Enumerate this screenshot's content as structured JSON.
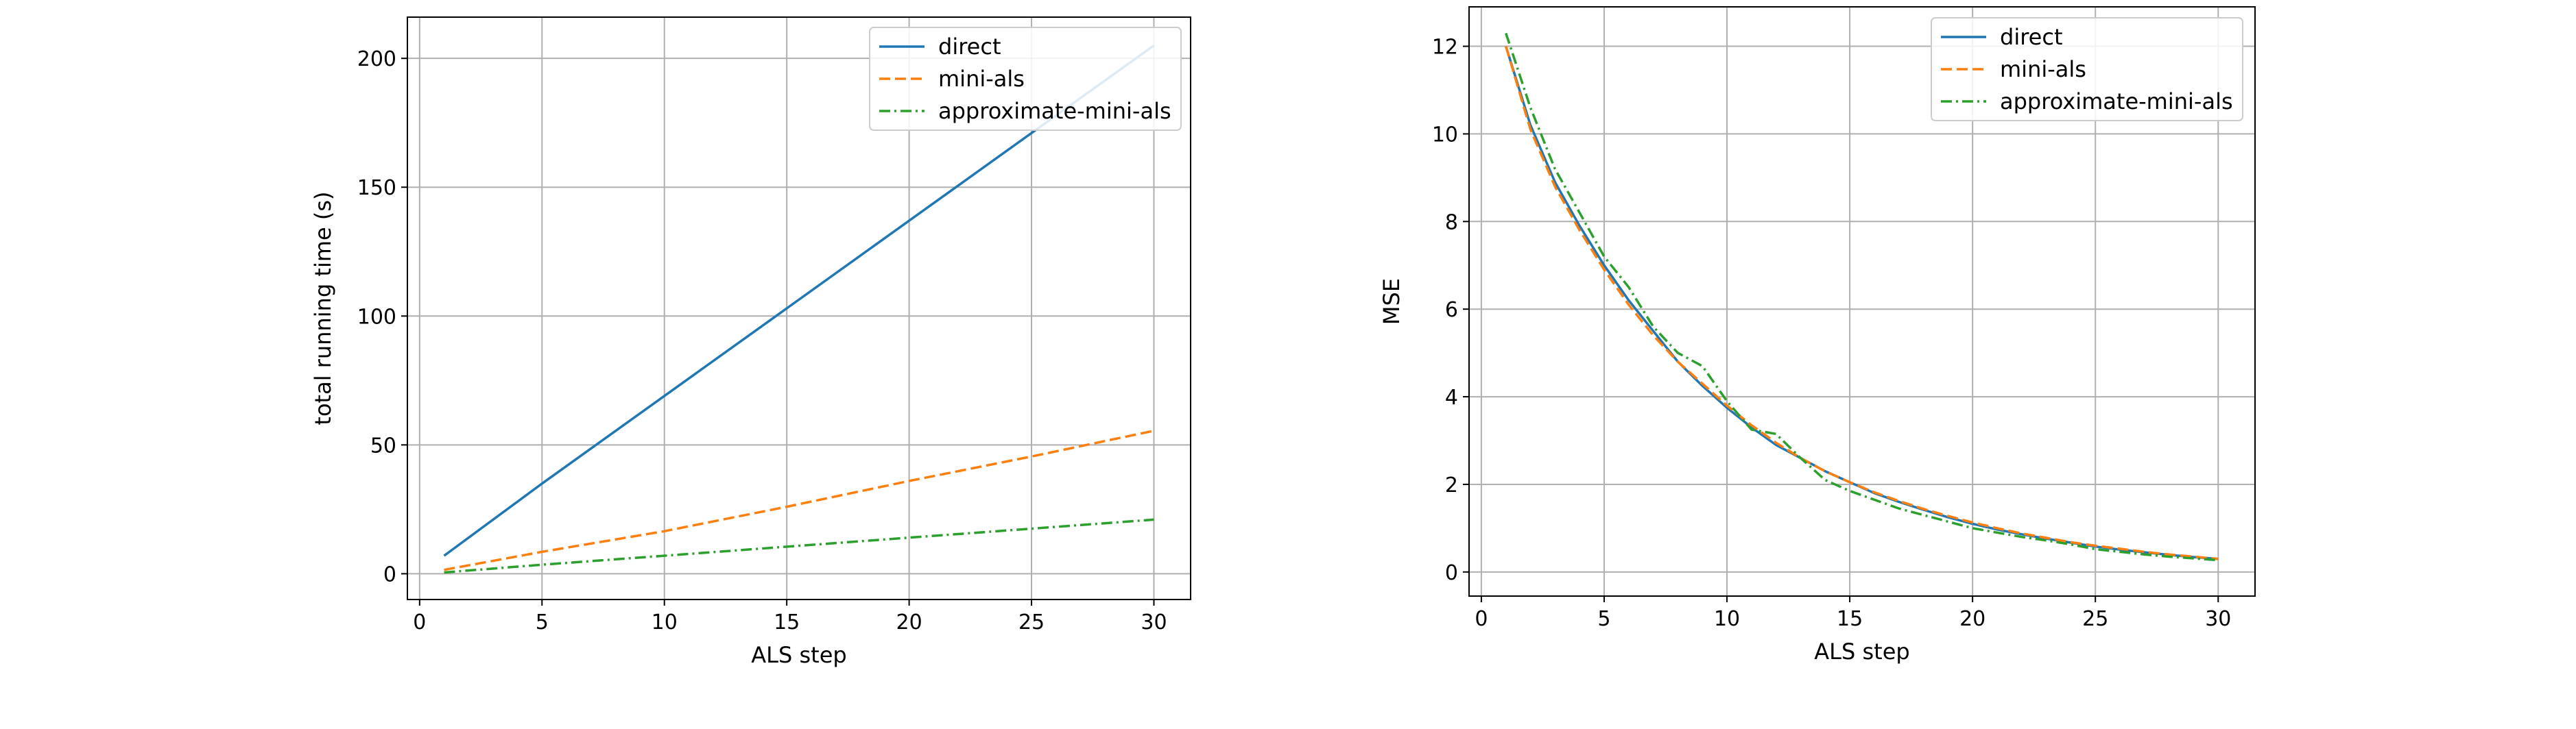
{
  "chart_data": [
    {
      "type": "line",
      "xlabel": "ALS step",
      "ylabel": "total running time (s)",
      "xlim": [
        -0.5,
        31.5
      ],
      "ylim": [
        -10,
        216
      ],
      "xticks": [
        0,
        5,
        10,
        15,
        20,
        25,
        30
      ],
      "xtick_labels": [
        "0",
        "5",
        "10",
        "15",
        "20",
        "25",
        "30"
      ],
      "yticks": [
        0,
        50,
        100,
        150,
        200
      ],
      "ytick_labels": [
        "0",
        "50",
        "100",
        "150",
        "200"
      ],
      "grid": true,
      "legend_position": "top-right",
      "series": [
        {
          "name": "direct",
          "color": "#1f77b4",
          "dash": "solid",
          "x": [
            1,
            5,
            10,
            15,
            20,
            25,
            30
          ],
          "y": [
            7,
            35,
            69,
            103,
            137,
            171,
            205
          ]
        },
        {
          "name": "mini-als",
          "color": "#ff7f0e",
          "dash": "dashed",
          "x": [
            1,
            5,
            10,
            15,
            20,
            25,
            30
          ],
          "y": [
            1.5,
            8.5,
            16.5,
            26,
            36,
            45.5,
            55.5
          ]
        },
        {
          "name": "approximate-mini-als",
          "color": "#2ca02c",
          "dash": "dashdot",
          "x": [
            1,
            5,
            10,
            15,
            20,
            25,
            30
          ],
          "y": [
            0.5,
            3.5,
            7,
            10.5,
            14,
            17.5,
            21
          ]
        }
      ]
    },
    {
      "type": "line",
      "xlabel": "ALS step",
      "ylabel": "MSE",
      "xlim": [
        -0.5,
        31.5
      ],
      "ylim": [
        -0.55,
        12.9
      ],
      "xticks": [
        0,
        5,
        10,
        15,
        20,
        25,
        30
      ],
      "xtick_labels": [
        "0",
        "5",
        "10",
        "15",
        "20",
        "25",
        "30"
      ],
      "yticks": [
        0,
        2,
        4,
        6,
        8,
        10,
        12
      ],
      "ytick_labels": [
        "0",
        "2",
        "4",
        "6",
        "8",
        "10",
        "12"
      ],
      "grid": true,
      "legend_position": "top-right",
      "series": [
        {
          "name": "direct",
          "color": "#1f77b4",
          "dash": "solid",
          "x": [
            1,
            2,
            3,
            4,
            5,
            6,
            7,
            8,
            9,
            10,
            11,
            12,
            13,
            14,
            15,
            16,
            17,
            18,
            19,
            20,
            21,
            22,
            23,
            24,
            25,
            26,
            27,
            28,
            29,
            30
          ],
          "y": [
            12.0,
            10.2,
            8.9,
            7.9,
            7.0,
            6.2,
            5.5,
            4.8,
            4.25,
            3.75,
            3.3,
            2.9,
            2.6,
            2.3,
            2.05,
            1.8,
            1.6,
            1.42,
            1.25,
            1.1,
            0.97,
            0.86,
            0.76,
            0.67,
            0.58,
            0.51,
            0.45,
            0.39,
            0.34,
            0.3
          ]
        },
        {
          "name": "mini-als",
          "color": "#ff7f0e",
          "dash": "dashed",
          "x": [
            1,
            2,
            3,
            4,
            5,
            6,
            7,
            8,
            9,
            10,
            11,
            12,
            13,
            14,
            15,
            16,
            17,
            18,
            19,
            20,
            21,
            22,
            23,
            24,
            25,
            26,
            27,
            28,
            29,
            30
          ],
          "y": [
            12.0,
            10.1,
            8.8,
            7.8,
            6.9,
            6.1,
            5.4,
            4.8,
            4.3,
            3.8,
            3.35,
            2.95,
            2.6,
            2.3,
            2.05,
            1.82,
            1.62,
            1.44,
            1.28,
            1.13,
            1.0,
            0.88,
            0.78,
            0.68,
            0.6,
            0.53,
            0.46,
            0.4,
            0.35,
            0.3
          ]
        },
        {
          "name": "approximate-mini-als",
          "color": "#2ca02c",
          "dash": "dashdot",
          "x": [
            1,
            2,
            3,
            4,
            5,
            6,
            7,
            8,
            9,
            10,
            11,
            12,
            13,
            14,
            15,
            16,
            17,
            18,
            19,
            20,
            21,
            22,
            23,
            24,
            25,
            26,
            27,
            28,
            29,
            30
          ],
          "y": [
            12.3,
            10.6,
            9.2,
            8.2,
            7.2,
            6.5,
            5.6,
            5.0,
            4.7,
            3.9,
            3.25,
            3.15,
            2.6,
            2.1,
            1.85,
            1.65,
            1.45,
            1.3,
            1.15,
            1.0,
            0.9,
            0.8,
            0.72,
            0.63,
            0.52,
            0.46,
            0.4,
            0.35,
            0.31,
            0.27
          ]
        }
      ]
    }
  ]
}
